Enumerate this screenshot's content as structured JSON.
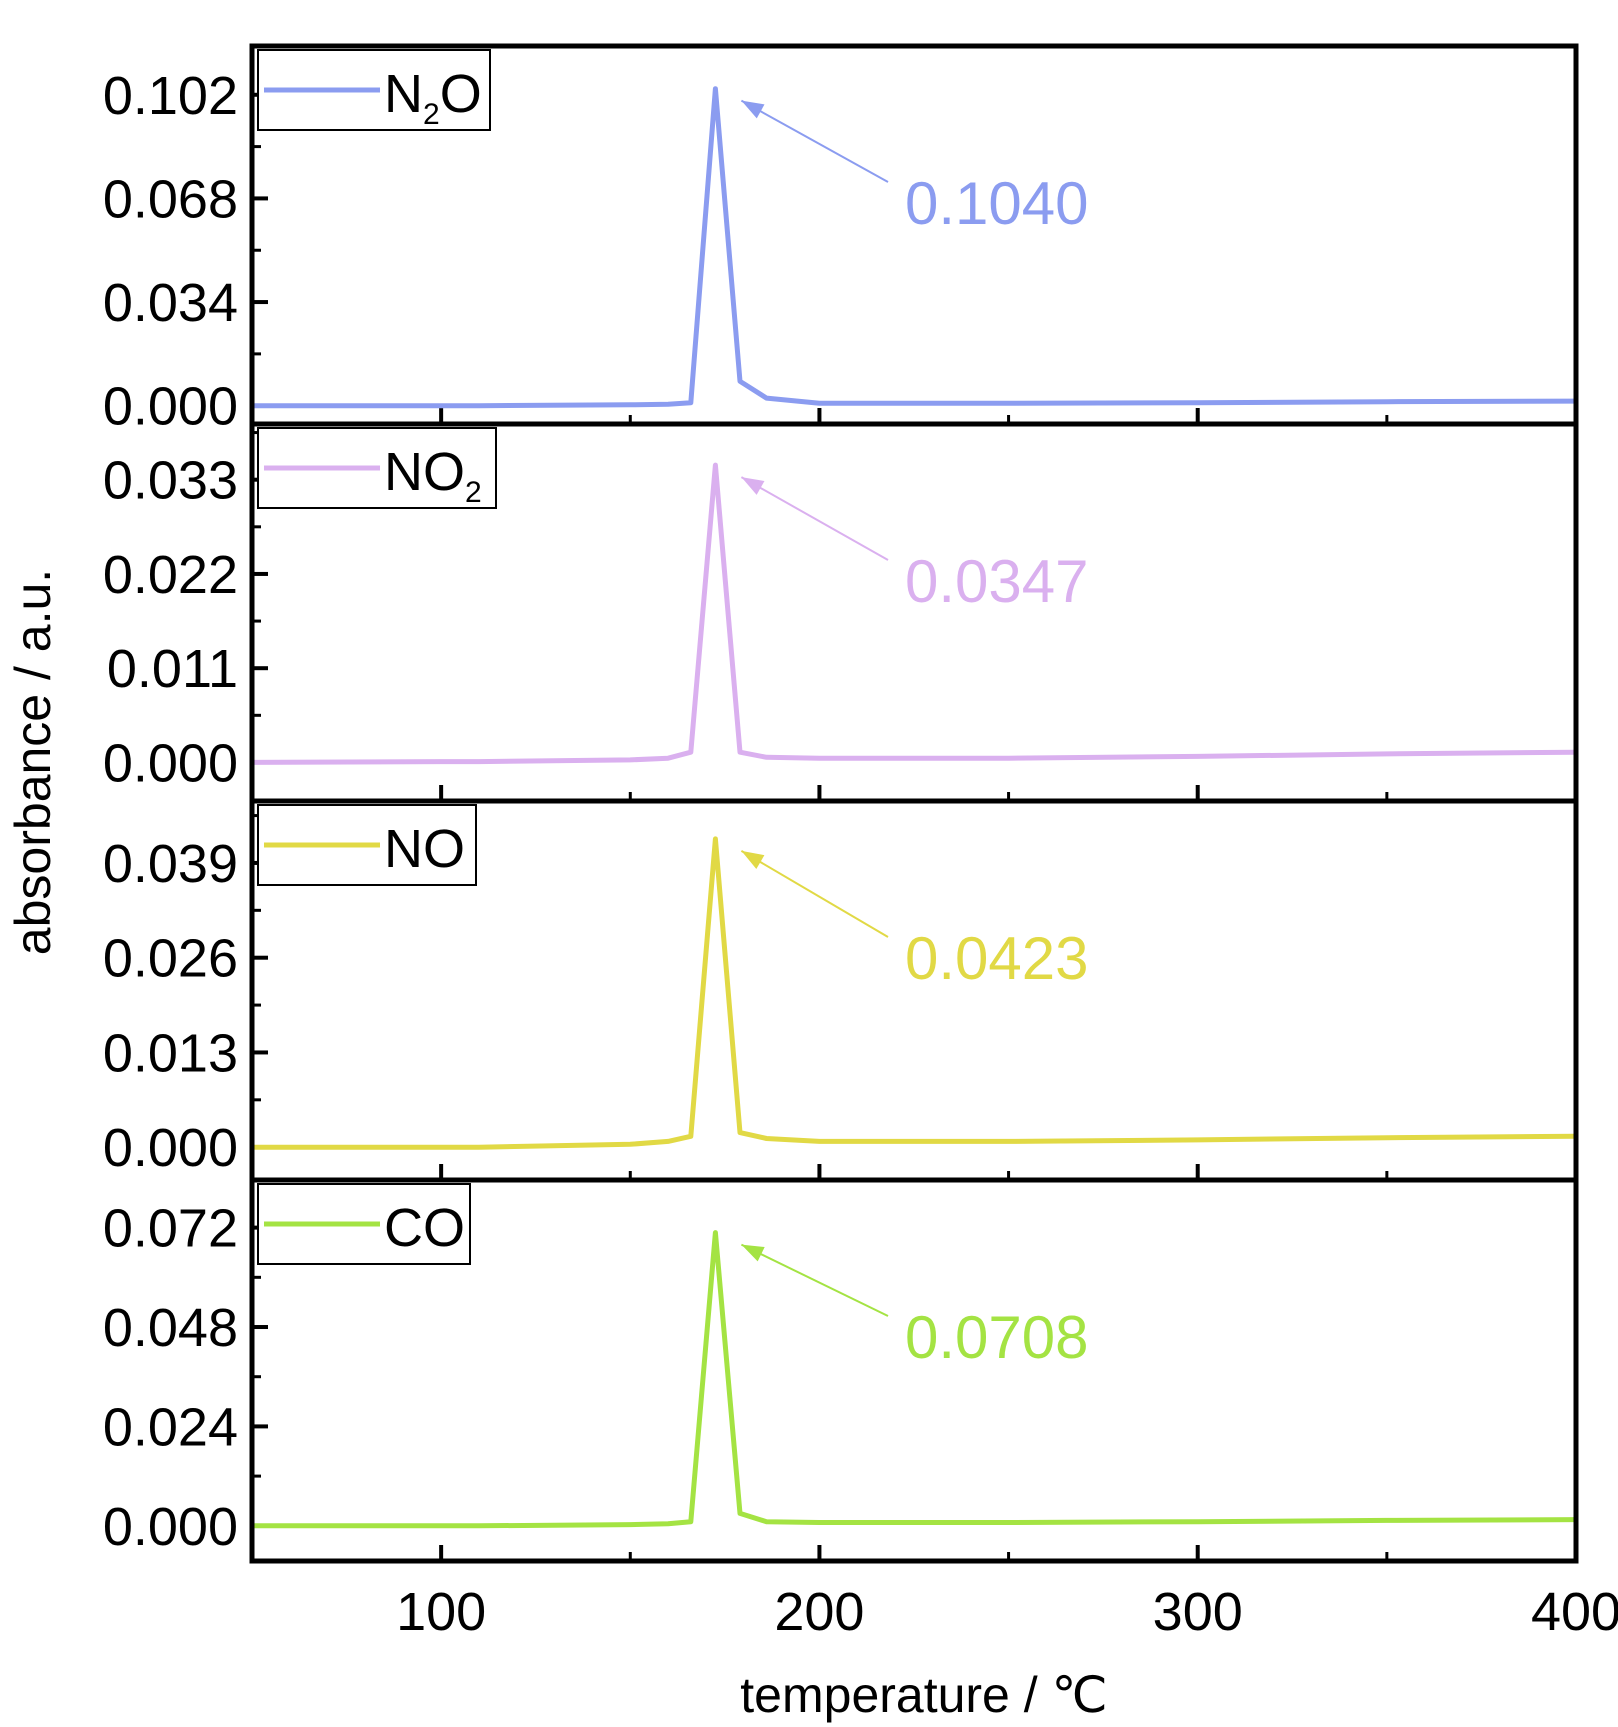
{
  "chart_data": {
    "type": "line",
    "layout": "stacked-panels",
    "xlabel": "temperature / ℃",
    "ylabel": "absorbance / a.u.",
    "xlim": [
      50,
      400
    ],
    "xticks": [
      100,
      200,
      300,
      400
    ],
    "x_minor_step": 50,
    "x": [
      50,
      100,
      110,
      150,
      160,
      166,
      172.5,
      179,
      186,
      200,
      250,
      300,
      350,
      400
    ],
    "legend_position": "top-left",
    "grid": false,
    "panels": [
      {
        "legend": {
          "base": "N",
          "sub": "2",
          "rest": "O"
        },
        "color": "#8b9cf0",
        "ylim": [
          -0.006,
          0.118
        ],
        "yticks": [
          0.0,
          0.034,
          0.068,
          0.102
        ],
        "ytick_labels": [
          "0.000",
          "0.034",
          "0.068",
          "0.102"
        ],
        "values": [
          0.0,
          0.0,
          0.0,
          0.0003,
          0.0005,
          0.001,
          0.104,
          0.008,
          0.0025,
          0.0008,
          0.0008,
          0.001,
          0.0013,
          0.0015
        ],
        "peak": {
          "x": 172.5,
          "y": 0.104,
          "label": "0.1040"
        }
      },
      {
        "legend": {
          "base": "NO",
          "sub": "2",
          "rest": ""
        },
        "color": "#dab0ef",
        "ylim": [
          -0.0045,
          0.0395
        ],
        "yticks": [
          0.0,
          0.011,
          0.022,
          0.033
        ],
        "ytick_labels": [
          "0.000",
          "0.011",
          "0.022",
          "0.033"
        ],
        "values": [
          0.0,
          0.0001,
          0.0001,
          0.0003,
          0.0005,
          0.0012,
          0.0347,
          0.0012,
          0.0006,
          0.0005,
          0.0005,
          0.0007,
          0.001,
          0.0012
        ],
        "peak": {
          "x": 172.5,
          "y": 0.0347,
          "label": "0.0347"
        }
      },
      {
        "legend": {
          "base": "NO",
          "sub": "",
          "rest": ""
        },
        "color": "#e1d945",
        "ylim": [
          -0.0045,
          0.0475
        ],
        "yticks": [
          0.0,
          0.013,
          0.026,
          0.039
        ],
        "ytick_labels": [
          "0.000",
          "0.013",
          "0.026",
          "0.039"
        ],
        "values": [
          0.0,
          0.0,
          0.0,
          0.0004,
          0.0008,
          0.0015,
          0.0423,
          0.002,
          0.0012,
          0.0008,
          0.0008,
          0.001,
          0.0013,
          0.0015
        ],
        "peak": {
          "x": 172.5,
          "y": 0.0423,
          "label": "0.0423"
        }
      },
      {
        "legend": {
          "base": "CO",
          "sub": "",
          "rest": ""
        },
        "color": "#a4e343",
        "ylim": [
          -0.0085,
          0.0835
        ],
        "yticks": [
          0.0,
          0.024,
          0.048,
          0.072
        ],
        "ytick_labels": [
          "0.000",
          "0.024",
          "0.048",
          "0.072"
        ],
        "values": [
          0.0,
          0.0,
          0.0,
          0.0003,
          0.0005,
          0.001,
          0.0708,
          0.003,
          0.001,
          0.0008,
          0.0008,
          0.001,
          0.0013,
          0.0015
        ],
        "peak": {
          "x": 172.5,
          "y": 0.0708,
          "label": "0.0708"
        }
      }
    ]
  }
}
